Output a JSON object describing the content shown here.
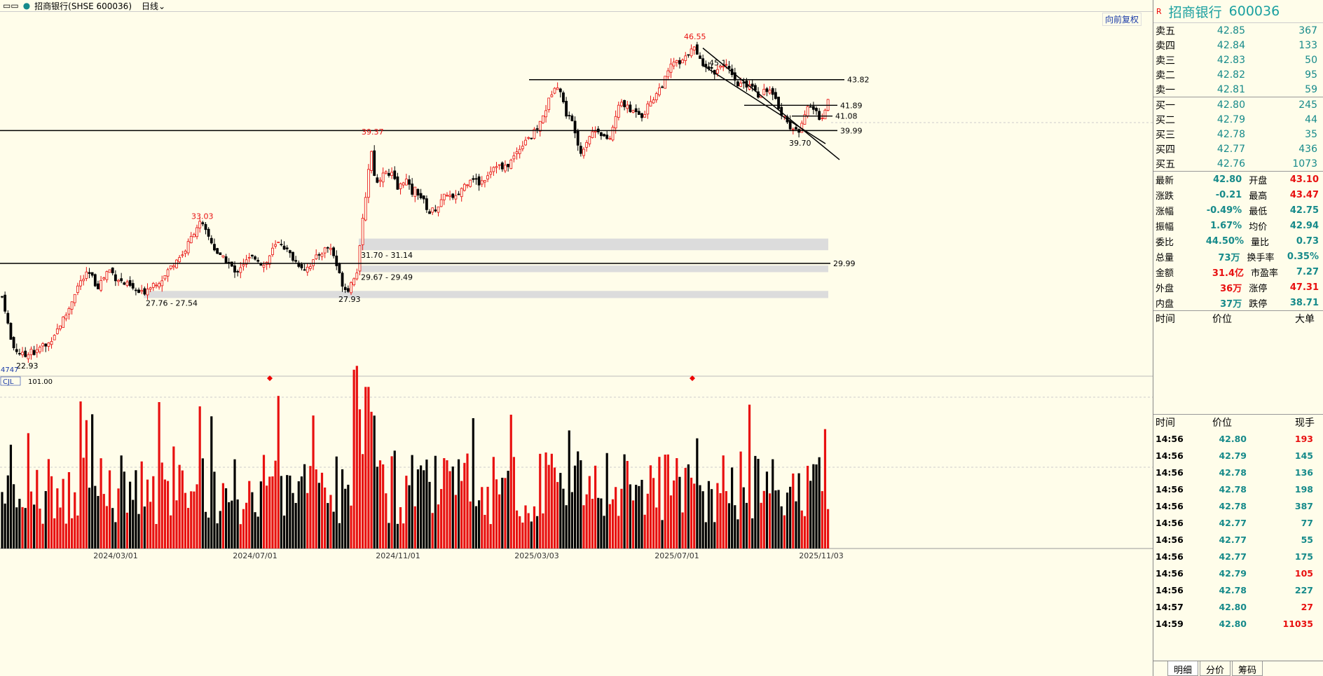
{
  "toolbar": {
    "icons": "▭▭",
    "title": "招商银行(SHSE 600036)",
    "period": "日线"
  },
  "restore_button": "向前复权",
  "colors": {
    "up": "#e81010",
    "down": "#000000",
    "teal": "#168a8a",
    "band": "#dcdcdc"
  },
  "chart_data": {
    "type": "candlestick",
    "title": "招商银行(SHSE 600036)",
    "x_tick_labels": [
      "2024/03/01",
      "2024/07/01",
      "2024/11/01",
      "2025/03/03",
      "2025/07/01",
      "2025/11/03"
    ],
    "y_range": [
      21.5,
      48.5
    ],
    "price_path": [
      [
        0,
        27.9
      ],
      [
        5,
        27.2
      ],
      [
        10,
        25.8
      ],
      [
        15,
        24.3
      ],
      [
        20,
        23.6
      ],
      [
        25,
        23.4
      ],
      [
        30,
        23.2
      ],
      [
        35,
        22.93
      ],
      [
        40,
        23.3
      ],
      [
        45,
        23.6
      ],
      [
        50,
        23.1
      ],
      [
        55,
        23.5
      ],
      [
        60,
        23.9
      ],
      [
        65,
        23.7
      ],
      [
        70,
        24.0
      ],
      [
        75,
        24.5
      ],
      [
        80,
        24.9
      ],
      [
        85,
        25.3
      ],
      [
        90,
        25.8
      ],
      [
        95,
        26.2
      ],
      [
        100,
        26.8
      ],
      [
        105,
        27.6
      ],
      [
        110,
        28.2
      ],
      [
        115,
        28.6
      ],
      [
        120,
        28.9
      ],
      [
        125,
        29.2
      ],
      [
        130,
        29.1
      ],
      [
        135,
        28.5
      ],
      [
        140,
        28.3
      ],
      [
        145,
        28.7
      ],
      [
        150,
        29.1
      ],
      [
        155,
        29.6
      ],
      [
        160,
        29.3
      ],
      [
        165,
        28.9
      ],
      [
        170,
        28.8
      ],
      [
        175,
        28.5
      ],
      [
        180,
        28.4
      ],
      [
        185,
        28.3
      ],
      [
        190,
        28.0
      ],
      [
        195,
        27.9
      ],
      [
        200,
        27.7
      ],
      [
        205,
        27.8
      ],
      [
        210,
        28.1
      ],
      [
        215,
        28.4
      ],
      [
        220,
        28.5
      ],
      [
        225,
        28.6
      ],
      [
        230,
        28.8
      ],
      [
        235,
        29.0
      ],
      [
        240,
        29.5
      ],
      [
        245,
        29.8
      ],
      [
        250,
        30.2
      ],
      [
        255,
        30.5
      ],
      [
        260,
        30.6
      ],
      [
        265,
        31.1
      ],
      [
        270,
        31.6
      ],
      [
        275,
        32.2
      ],
      [
        280,
        32.7
      ],
      [
        285,
        33.03
      ],
      [
        290,
        32.7
      ],
      [
        295,
        32.2
      ],
      [
        300,
        31.8
      ],
      [
        305,
        31.2
      ],
      [
        310,
        30.8
      ],
      [
        315,
        30.4
      ],
      [
        320,
        30.3
      ],
      [
        325,
        30.1
      ],
      [
        330,
        29.8
      ],
      [
        335,
        29.2
      ],
      [
        340,
        29.6
      ],
      [
        345,
        29.9
      ],
      [
        350,
        30.1
      ],
      [
        355,
        30.3
      ],
      [
        360,
        30.4
      ],
      [
        365,
        30.5
      ],
      [
        370,
        30.2
      ],
      [
        375,
        29.8
      ],
      [
        380,
        30.0
      ],
      [
        385,
        30.6
      ],
      [
        390,
        31.1
      ],
      [
        395,
        31.4
      ],
      [
        400,
        31.6
      ],
      [
        405,
        31.3
      ],
      [
        410,
        30.9
      ],
      [
        415,
        30.6
      ],
      [
        420,
        30.2
      ],
      [
        425,
        30.0
      ],
      [
        430,
        29.8
      ],
      [
        435,
        29.6
      ],
      [
        440,
        29.8
      ],
      [
        445,
        30.0
      ],
      [
        450,
        30.3
      ],
      [
        455,
        30.7
      ],
      [
        460,
        30.9
      ],
      [
        465,
        31.1
      ],
      [
        470,
        31.3
      ],
      [
        475,
        30.8
      ],
      [
        480,
        29.9
      ],
      [
        485,
        29.0
      ],
      [
        490,
        28.3
      ],
      [
        495,
        27.93
      ],
      [
        500,
        28.4
      ],
      [
        505,
        29.0
      ],
      [
        510,
        29.5
      ],
      [
        515,
        31.8
      ],
      [
        520,
        34.5
      ],
      [
        525,
        36.2
      ],
      [
        528,
        39.37
      ],
      [
        533,
        37.0
      ],
      [
        538,
        36.0
      ],
      [
        543,
        36.5
      ],
      [
        548,
        37.2
      ],
      [
        553,
        36.4
      ],
      [
        558,
        36.8
      ],
      [
        563,
        36.2
      ],
      [
        568,
        35.5
      ],
      [
        573,
        36.0
      ],
      [
        578,
        36.5
      ],
      [
        583,
        35.8
      ],
      [
        588,
        35.3
      ],
      [
        593,
        35.6
      ],
      [
        598,
        35.2
      ],
      [
        603,
        34.8
      ],
      [
        608,
        34.3
      ],
      [
        613,
        33.8
      ],
      [
        618,
        34.0
      ],
      [
        623,
        34.2
      ],
      [
        628,
        34.5
      ],
      [
        633,
        34.9
      ],
      [
        638,
        35.3
      ],
      [
        643,
        35.0
      ],
      [
        648,
        34.7
      ],
      [
        653,
        35.1
      ],
      [
        658,
        35.6
      ],
      [
        663,
        35.9
      ],
      [
        668,
        36.2
      ],
      [
        673,
        36.6
      ],
      [
        678,
        36.3
      ],
      [
        683,
        36.0
      ],
      [
        688,
        36.2
      ],
      [
        693,
        36.5
      ],
      [
        698,
        36.9
      ],
      [
        703,
        37.2
      ],
      [
        708,
        37.5
      ],
      [
        713,
        37.3
      ],
      [
        718,
        37.0
      ],
      [
        723,
        37.3
      ],
      [
        728,
        37.6
      ],
      [
        733,
        38.0
      ],
      [
        738,
        38.4
      ],
      [
        743,
        38.8
      ],
      [
        748,
        39.2
      ],
      [
        753,
        39.6
      ],
      [
        758,
        39.4
      ],
      [
        763,
        39.9
      ],
      [
        768,
        40.3
      ],
      [
        773,
        40.8
      ],
      [
        778,
        41.5
      ],
      [
        783,
        42.2
      ],
      [
        788,
        43.0
      ],
      [
        793,
        43.6
      ],
      [
        798,
        43.3
      ],
      [
        803,
        42.2
      ],
      [
        808,
        41.3
      ],
      [
        813,
        40.9
      ],
      [
        818,
        40.5
      ],
      [
        823,
        39.6
      ],
      [
        828,
        38.2
      ],
      [
        833,
        38.8
      ],
      [
        838,
        39.3
      ],
      [
        843,
        39.8
      ],
      [
        848,
        39.9
      ],
      [
        853,
        40.1
      ],
      [
        858,
        39.8
      ],
      [
        863,
        39.5
      ],
      [
        868,
        39.0
      ],
      [
        873,
        39.9
      ],
      [
        878,
        40.9
      ],
      [
        883,
        41.8
      ],
      [
        888,
        42.2
      ],
      [
        893,
        41.8
      ],
      [
        898,
        41.5
      ],
      [
        903,
        41.4
      ],
      [
        908,
        41.6
      ],
      [
        913,
        41.3
      ],
      [
        918,
        41.1
      ],
      [
        923,
        41.7
      ],
      [
        928,
        42.2
      ],
      [
        933,
        42.5
      ],
      [
        938,
        42.9
      ],
      [
        943,
        43.3
      ],
      [
        948,
        43.7
      ],
      [
        953,
        44.3
      ],
      [
        958,
        44.9
      ],
      [
        963,
        45.3
      ],
      [
        968,
        44.9
      ],
      [
        973,
        45.1
      ],
      [
        978,
        45.4
      ],
      [
        983,
        45.9
      ],
      [
        988,
        46.55
      ],
      [
        993,
        45.8
      ],
      [
        998,
        45.3
      ],
      [
        1003,
        45.1
      ],
      [
        1008,
        45.0
      ],
      [
        1013,
        44.7
      ],
      [
        1018,
        44.4
      ],
      [
        1023,
        44.5
      ],
      [
        1028,
        44.9
      ],
      [
        1033,
        45.1
      ],
      [
        1038,
        44.7
      ],
      [
        1043,
        44.2
      ],
      [
        1048,
        43.6
      ],
      [
        1053,
        43.4
      ],
      [
        1058,
        43.5
      ],
      [
        1063,
        43.3
      ],
      [
        1068,
        43.6
      ],
      [
        1073,
        43.4
      ],
      [
        1078,
        43.1
      ],
      [
        1083,
        42.6
      ],
      [
        1088,
        42.9
      ],
      [
        1093,
        43.2
      ],
      [
        1098,
        43.0
      ],
      [
        1103,
        42.5
      ],
      [
        1108,
        42.1
      ],
      [
        1113,
        41.6
      ],
      [
        1118,
        41.1
      ],
      [
        1123,
        40.6
      ],
      [
        1128,
        40.3
      ],
      [
        1133,
        40.1
      ],
      [
        1138,
        39.7
      ],
      [
        1143,
        40.6
      ],
      [
        1148,
        41.3
      ],
      [
        1153,
        41.6
      ],
      [
        1158,
        41.8
      ],
      [
        1163,
        41.5
      ],
      [
        1168,
        41.1
      ],
      [
        1173,
        40.9
      ],
      [
        1178,
        41.6
      ],
      [
        1183,
        42.8
      ]
    ],
    "extreme_labels": [
      {
        "text": "22.93",
        "price": 22.93,
        "i": 35,
        "color": "#000"
      },
      {
        "text": "33.03",
        "price": 33.03,
        "i": 285,
        "color": "#e81010"
      },
      {
        "text": "27.93",
        "price": 27.93,
        "i": 495,
        "color": "#000"
      },
      {
        "text": "39.37",
        "price": 39.37,
        "i": 528,
        "color": "#e81010"
      },
      {
        "text": "46.55",
        "price": 46.55,
        "i": 988,
        "color": "#e81010"
      },
      {
        "text": "39.70",
        "price": 39.7,
        "i": 1138,
        "color": "#000"
      }
    ],
    "h_lines": [
      {
        "price": 43.82,
        "label": "43.82",
        "x0": 755,
        "x1": 1205
      },
      {
        "price": 39.99,
        "label": "39.99",
        "x0": 0,
        "x1": 1195
      },
      {
        "price": 29.99,
        "label": "29.99",
        "x0": 0,
        "x1": 1185
      },
      {
        "price": 41.89,
        "label": "41.89",
        "x0": 1062,
        "x1": 1195
      },
      {
        "price": 41.08,
        "label": "41.08",
        "x0": 1130,
        "x1": 1188
      }
    ],
    "extra_labels": [
      {
        "text": "45.1",
        "price": 45.1,
        "i": 1012
      }
    ],
    "bands": [
      {
        "low": 31.14,
        "high": 31.7,
        "label": "31.70 - 31.14",
        "x0": 512,
        "x1": 1182
      },
      {
        "low": 29.49,
        "high": 29.67,
        "label": "29.67 - 29.49",
        "x0": 512,
        "x1": 1182
      },
      {
        "low": 27.54,
        "high": 27.76,
        "label": "27.76 - 27.54",
        "x0": 205,
        "x1": 1182
      }
    ],
    "channel_lines": [
      {
        "p1": [
          1003,
          46.2
        ],
        "p2": [
          1198,
          37.8
        ]
      },
      {
        "p1": [
          1003,
          44.9
        ],
        "p2": [
          1178,
          39.0
        ]
      }
    ],
    "volume_indicator": {
      "name": "CJL",
      "value": "101.00",
      "left_label": "4747"
    },
    "volume_range": [
      0,
      101
    ]
  },
  "right_panel": {
    "flag": "R",
    "stock_name": "招商银行",
    "code": "600036",
    "asks": [
      {
        "label": "卖五",
        "price": "42.85",
        "vol": "367"
      },
      {
        "label": "卖四",
        "price": "42.84",
        "vol": "133"
      },
      {
        "label": "卖三",
        "price": "42.83",
        "vol": "50"
      },
      {
        "label": "卖二",
        "price": "42.82",
        "vol": "95"
      },
      {
        "label": "卖一",
        "price": "42.81",
        "vol": "59"
      }
    ],
    "bids": [
      {
        "label": "买一",
        "price": "42.80",
        "vol": "245"
      },
      {
        "label": "买二",
        "price": "42.79",
        "vol": "44"
      },
      {
        "label": "买三",
        "price": "42.78",
        "vol": "35"
      },
      {
        "label": "买四",
        "price": "42.77",
        "vol": "436"
      },
      {
        "label": "买五",
        "price": "42.76",
        "vol": "1073"
      }
    ],
    "stats": [
      {
        "l": "最新",
        "v": "42.80",
        "c1": "#168a8a",
        "l2": "开盘",
        "v2": "43.10",
        "c2": "#e81010"
      },
      {
        "l": "涨跌",
        "v": "-0.21",
        "c1": "#168a8a",
        "l2": "最高",
        "v2": "43.47",
        "c2": "#e81010"
      },
      {
        "l": "涨幅",
        "v": "-0.49%",
        "c1": "#168a8a",
        "l2": "最低",
        "v2": "42.75",
        "c2": "#168a8a"
      },
      {
        "l": "振幅",
        "v": "1.67%",
        "c1": "#168a8a",
        "l2": "均价",
        "v2": "42.94",
        "c2": "#168a8a"
      },
      {
        "l": "委比",
        "v": "44.50%",
        "c1": "#168a8a",
        "l2": "量比",
        "v2": "0.73",
        "c2": "#168a8a"
      },
      {
        "l": "总量",
        "v": "73万",
        "c1": "#168a8a",
        "l2": "换手率",
        "v2": "0.35%",
        "c2": "#168a8a"
      },
      {
        "l": "金额",
        "v": "31.4亿",
        "c1": "#e81010",
        "l2": "市盈率",
        "v2": "7.27",
        "c2": "#168a8a"
      },
      {
        "l": "外盘",
        "v": "36万",
        "c1": "#e81010",
        "l2": "涨停",
        "v2": "47.31",
        "c2": "#e81010"
      },
      {
        "l": "内盘",
        "v": "37万",
        "c1": "#168a8a",
        "l2": "跌停",
        "v2": "38.71",
        "c2": "#168a8a"
      }
    ],
    "big_order_header": [
      "时间",
      "价位",
      "大单"
    ],
    "tick_header": [
      "时间",
      "价位",
      "现手"
    ],
    "ticks": [
      {
        "t": "14:56",
        "p": "42.80",
        "q": "193",
        "c": "#e81010"
      },
      {
        "t": "14:56",
        "p": "42.79",
        "q": "145",
        "c": "#168a8a"
      },
      {
        "t": "14:56",
        "p": "42.78",
        "q": "136",
        "c": "#168a8a"
      },
      {
        "t": "14:56",
        "p": "42.78",
        "q": "198",
        "c": "#168a8a"
      },
      {
        "t": "14:56",
        "p": "42.78",
        "q": "387",
        "c": "#168a8a"
      },
      {
        "t": "14:56",
        "p": "42.77",
        "q": "77",
        "c": "#168a8a"
      },
      {
        "t": "14:56",
        "p": "42.77",
        "q": "55",
        "c": "#168a8a"
      },
      {
        "t": "14:56",
        "p": "42.77",
        "q": "175",
        "c": "#168a8a"
      },
      {
        "t": "14:56",
        "p": "42.79",
        "q": "105",
        "c": "#e81010"
      },
      {
        "t": "14:56",
        "p": "42.78",
        "q": "227",
        "c": "#168a8a"
      },
      {
        "t": "14:57",
        "p": "42.80",
        "q": "27",
        "c": "#e81010"
      },
      {
        "t": "14:59",
        "p": "42.80",
        "q": "11035",
        "c": "#e81010"
      }
    ],
    "tabs": [
      "明细",
      "分价",
      "筹码"
    ]
  }
}
